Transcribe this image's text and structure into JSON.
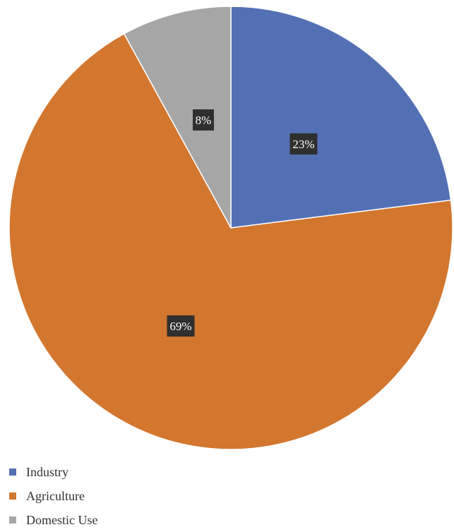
{
  "chart_data": {
    "type": "pie",
    "title": "",
    "categories": [
      "Industry",
      "Agriculture",
      "Domestic Use"
    ],
    "values": [
      23,
      69,
      8
    ],
    "labels": [
      "23%",
      "69%",
      "8%"
    ],
    "colors": [
      "#5470b5",
      "#d3762e",
      "#a6a6a6"
    ],
    "start_angle_deg": 0,
    "direction": "clockwise",
    "legend_position": "bottom-left"
  },
  "legend": {
    "items": [
      {
        "label": "Industry",
        "color": "#5470b5"
      },
      {
        "label": "Agriculture",
        "color": "#d3762e"
      },
      {
        "label": "Domestic Use",
        "color": "#a6a6a6"
      }
    ]
  }
}
